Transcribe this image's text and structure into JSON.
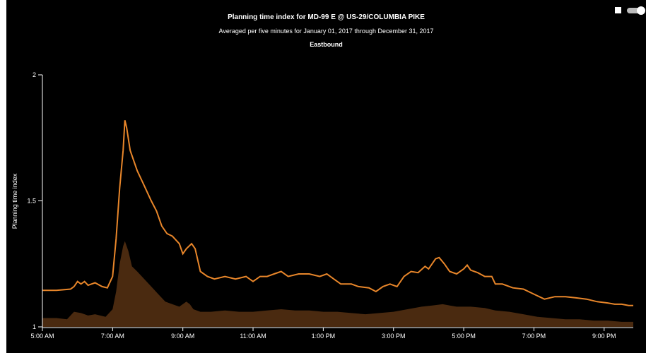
{
  "header": {
    "title": "Planning time index for MD-99 E @ US-29/COLUMBIA PIKE",
    "subtitle": "Averaged per five minutes for January 01, 2017 through December 31, 2017",
    "direction": "Eastbound"
  },
  "chart_data": {
    "type": "area",
    "ylabel": "Planning time index",
    "ylim": [
      1,
      2
    ],
    "yticks": [
      1,
      1.5,
      2
    ],
    "ytick_labels": [
      "1",
      "1.5",
      "2"
    ],
    "xlim_hours": [
      5,
      21.83
    ],
    "xticks_hours": [
      5,
      7,
      9,
      11,
      13,
      15,
      17,
      19,
      21
    ],
    "xtick_labels": [
      "5:00 AM",
      "7:00 AM",
      "9:00 AM",
      "11:00 AM",
      "1:00 PM",
      "3:00 PM",
      "5:00 PM",
      "7:00 PM",
      "9:00 PM"
    ],
    "grid": false,
    "colors": {
      "line": "#e8862a",
      "area": "#4a2a10",
      "background": "#000000",
      "axis": "#ffffff"
    },
    "series": [
      {
        "role": "line",
        "points": [
          [
            5,
            1.145
          ],
          [
            5.4,
            1.145
          ],
          [
            5.8,
            1.15
          ],
          [
            5.9,
            1.16
          ],
          [
            6.0,
            1.18
          ],
          [
            6.1,
            1.17
          ],
          [
            6.2,
            1.18
          ],
          [
            6.3,
            1.165
          ],
          [
            6.5,
            1.175
          ],
          [
            6.7,
            1.16
          ],
          [
            6.85,
            1.155
          ],
          [
            7.0,
            1.2
          ],
          [
            7.1,
            1.35
          ],
          [
            7.2,
            1.55
          ],
          [
            7.3,
            1.7
          ],
          [
            7.35,
            1.82
          ],
          [
            7.4,
            1.79
          ],
          [
            7.5,
            1.7
          ],
          [
            7.7,
            1.62
          ],
          [
            7.9,
            1.56
          ],
          [
            8.1,
            1.5
          ],
          [
            8.25,
            1.46
          ],
          [
            8.4,
            1.4
          ],
          [
            8.55,
            1.37
          ],
          [
            8.7,
            1.36
          ],
          [
            8.9,
            1.33
          ],
          [
            9.0,
            1.29
          ],
          [
            9.1,
            1.31
          ],
          [
            9.25,
            1.33
          ],
          [
            9.35,
            1.31
          ],
          [
            9.5,
            1.22
          ],
          [
            9.7,
            1.2
          ],
          [
            9.9,
            1.19
          ],
          [
            10.2,
            1.2
          ],
          [
            10.5,
            1.19
          ],
          [
            10.8,
            1.2
          ],
          [
            11.0,
            1.18
          ],
          [
            11.2,
            1.2
          ],
          [
            11.4,
            1.2
          ],
          [
            11.6,
            1.21
          ],
          [
            11.8,
            1.22
          ],
          [
            12.0,
            1.2
          ],
          [
            12.3,
            1.21
          ],
          [
            12.6,
            1.21
          ],
          [
            12.9,
            1.2
          ],
          [
            13.1,
            1.21
          ],
          [
            13.3,
            1.19
          ],
          [
            13.5,
            1.17
          ],
          [
            13.8,
            1.17
          ],
          [
            14.0,
            1.16
          ],
          [
            14.3,
            1.155
          ],
          [
            14.5,
            1.14
          ],
          [
            14.7,
            1.16
          ],
          [
            14.9,
            1.17
          ],
          [
            15.1,
            1.16
          ],
          [
            15.3,
            1.2
          ],
          [
            15.5,
            1.22
          ],
          [
            15.7,
            1.215
          ],
          [
            15.9,
            1.24
          ],
          [
            16.0,
            1.23
          ],
          [
            16.2,
            1.27
          ],
          [
            16.3,
            1.275
          ],
          [
            16.45,
            1.25
          ],
          [
            16.6,
            1.22
          ],
          [
            16.8,
            1.21
          ],
          [
            17.0,
            1.23
          ],
          [
            17.1,
            1.245
          ],
          [
            17.2,
            1.225
          ],
          [
            17.4,
            1.215
          ],
          [
            17.6,
            1.2
          ],
          [
            17.8,
            1.2
          ],
          [
            17.9,
            1.17
          ],
          [
            18.1,
            1.17
          ],
          [
            18.4,
            1.155
          ],
          [
            18.7,
            1.15
          ],
          [
            19.0,
            1.13
          ],
          [
            19.3,
            1.11
          ],
          [
            19.6,
            1.12
          ],
          [
            19.9,
            1.12
          ],
          [
            20.2,
            1.115
          ],
          [
            20.5,
            1.11
          ],
          [
            20.8,
            1.1
          ],
          [
            21.1,
            1.095
          ],
          [
            21.3,
            1.09
          ],
          [
            21.5,
            1.09
          ],
          [
            21.7,
            1.085
          ],
          [
            21.83,
            1.085
          ]
        ]
      },
      {
        "role": "area",
        "points": [
          [
            5,
            1.035
          ],
          [
            5.4,
            1.035
          ],
          [
            5.7,
            1.03
          ],
          [
            5.9,
            1.06
          ],
          [
            6.1,
            1.055
          ],
          [
            6.3,
            1.045
          ],
          [
            6.5,
            1.05
          ],
          [
            6.8,
            1.04
          ],
          [
            7.0,
            1.07
          ],
          [
            7.1,
            1.14
          ],
          [
            7.2,
            1.25
          ],
          [
            7.3,
            1.32
          ],
          [
            7.35,
            1.34
          ],
          [
            7.45,
            1.3
          ],
          [
            7.55,
            1.24
          ],
          [
            7.7,
            1.22
          ],
          [
            7.9,
            1.19
          ],
          [
            8.1,
            1.16
          ],
          [
            8.3,
            1.13
          ],
          [
            8.5,
            1.1
          ],
          [
            8.7,
            1.09
          ],
          [
            8.9,
            1.08
          ],
          [
            9.1,
            1.1
          ],
          [
            9.2,
            1.09
          ],
          [
            9.3,
            1.07
          ],
          [
            9.5,
            1.06
          ],
          [
            9.8,
            1.06
          ],
          [
            10.2,
            1.065
          ],
          [
            10.6,
            1.06
          ],
          [
            11.0,
            1.06
          ],
          [
            11.4,
            1.065
          ],
          [
            11.8,
            1.07
          ],
          [
            12.2,
            1.065
          ],
          [
            12.6,
            1.065
          ],
          [
            13.0,
            1.06
          ],
          [
            13.4,
            1.06
          ],
          [
            13.8,
            1.055
          ],
          [
            14.2,
            1.05
          ],
          [
            14.6,
            1.055
          ],
          [
            15.0,
            1.06
          ],
          [
            15.4,
            1.07
          ],
          [
            15.8,
            1.08
          ],
          [
            16.1,
            1.085
          ],
          [
            16.4,
            1.09
          ],
          [
            16.8,
            1.08
          ],
          [
            17.2,
            1.08
          ],
          [
            17.6,
            1.075
          ],
          [
            17.9,
            1.065
          ],
          [
            18.3,
            1.06
          ],
          [
            18.7,
            1.05
          ],
          [
            19.1,
            1.04
          ],
          [
            19.5,
            1.035
          ],
          [
            19.9,
            1.03
          ],
          [
            20.3,
            1.03
          ],
          [
            20.7,
            1.025
          ],
          [
            21.1,
            1.025
          ],
          [
            21.5,
            1.02
          ],
          [
            21.83,
            1.02
          ]
        ]
      }
    ]
  }
}
